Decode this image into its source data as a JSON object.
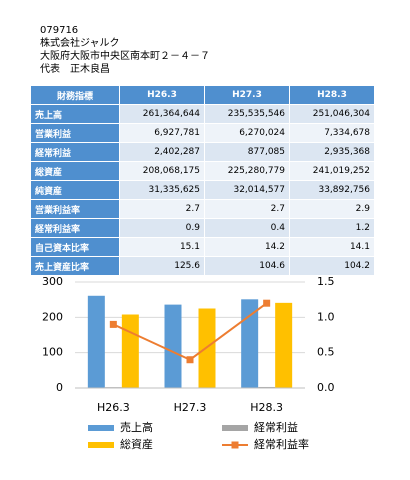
{
  "header": {
    "code": "079716",
    "company": "株式会社ジャルク",
    "address": "大阪府大阪市中央区南本町２－４－７",
    "representative": "代表　正木良昌"
  },
  "table": {
    "columns": [
      "財務指標",
      "H26.3",
      "H27.3",
      "H28.3"
    ],
    "rows": [
      [
        "売上高",
        "261,364,644",
        "235,535,546",
        "251,046,304"
      ],
      [
        "営業利益",
        "6,927,781",
        "6,270,024",
        "7,334,678"
      ],
      [
        "経常利益",
        "2,402,287",
        "877,085",
        "2,935,368"
      ],
      [
        "総資産",
        "208,068,175",
        "225,280,779",
        "241,019,252"
      ],
      [
        "純資産",
        "31,335,625",
        "32,014,577",
        "33,892,756"
      ],
      [
        "営業利益率",
        "2.7",
        "2.7",
        "2.9"
      ],
      [
        "経常利益率",
        "0.9",
        "0.4",
        "1.2"
      ],
      [
        "自己資本比率",
        "15.1",
        "14.2",
        "14.1"
      ],
      [
        "売上資産比率",
        "125.6",
        "104.6",
        "104.2"
      ]
    ]
  },
  "chart_data": {
    "type": "bar",
    "categories": [
      "H26.3",
      "H27.3",
      "H28.3"
    ],
    "series": [
      {
        "name": "売上高",
        "color": "#5b9bd5",
        "values": [
          261,
          236,
          251
        ]
      },
      {
        "name": "経常利益",
        "color": "#a5a5a5",
        "values": [
          2.4,
          0.9,
          2.9
        ]
      },
      {
        "name": "総資産",
        "color": "#ffc000",
        "values": [
          208,
          225,
          241
        ]
      },
      {
        "name": "経常利益率",
        "color": "#ed7d31",
        "type": "line",
        "axis": "y2",
        "values": [
          0.9,
          0.4,
          1.2
        ]
      }
    ],
    "ylim": [
      0,
      300
    ],
    "yticks": [
      0,
      100,
      200,
      300
    ],
    "y2lim": [
      0,
      1.5
    ],
    "y2ticks": [
      {
        "value": 0,
        "label": "0.0"
      },
      {
        "value": 0.5,
        "label": "0.5"
      },
      {
        "value": 1,
        "label": "1.0"
      },
      {
        "value": 1.5,
        "label": "1.5"
      }
    ],
    "grid": true
  }
}
